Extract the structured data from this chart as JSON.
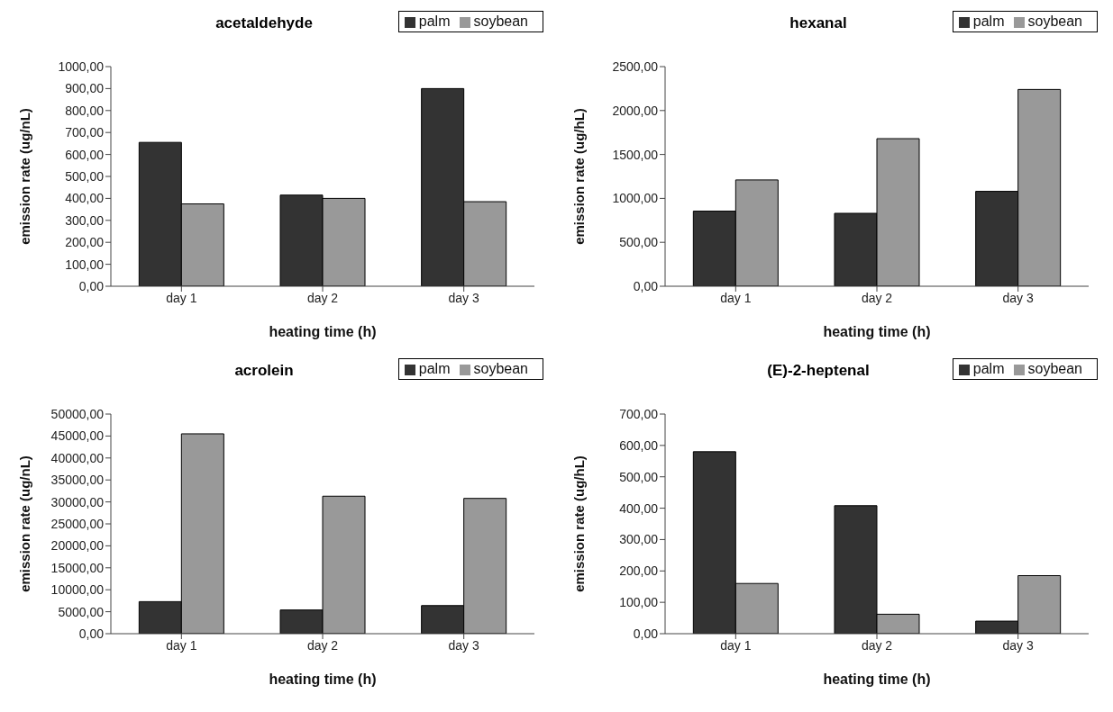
{
  "chart_data": [
    {
      "type": "bar",
      "title": "acetaldehyde",
      "xlabel": "heating time (h)",
      "ylabel": "emission rate (ug/nL)",
      "categories": [
        "day 1",
        "day 2",
        "day 3"
      ],
      "series": [
        {
          "name": "palm",
          "color": "#333333",
          "values": [
            655,
            415,
            900
          ]
        },
        {
          "name": "soybean",
          "color": "#999999",
          "values": [
            375,
            400,
            385
          ]
        }
      ],
      "ylim": [
        0,
        1000
      ],
      "yticks": [
        {
          "value": 0,
          "label": "0,00"
        },
        {
          "value": 100,
          "label": "100,00"
        },
        {
          "value": 200,
          "label": "200,00"
        },
        {
          "value": 300,
          "label": "300,00"
        },
        {
          "value": 400,
          "label": "400,00"
        },
        {
          "value": 500,
          "label": "500,00"
        },
        {
          "value": 600,
          "label": "600,00"
        },
        {
          "value": 700,
          "label": "700,00"
        },
        {
          "value": 800,
          "label": "800,00"
        },
        {
          "value": 900,
          "label": "900,00"
        },
        {
          "value": 1000,
          "label": "1000,00"
        }
      ],
      "grid": false,
      "legend": "top right"
    },
    {
      "type": "bar",
      "title": "hexanal",
      "xlabel": "heating time (h)",
      "ylabel": "emission rate (ug/hL)",
      "categories": [
        "day 1",
        "day 2",
        "day 3"
      ],
      "series": [
        {
          "name": "palm",
          "color": "#333333",
          "values": [
            855,
            830,
            1080
          ]
        },
        {
          "name": "soybean",
          "color": "#999999",
          "values": [
            1210,
            1680,
            2240
          ]
        }
      ],
      "ylim": [
        0,
        2500
      ],
      "yticks": [
        {
          "value": 0,
          "label": "0,00"
        },
        {
          "value": 500,
          "label": "500,00"
        },
        {
          "value": 1000,
          "label": "1000,00"
        },
        {
          "value": 1500,
          "label": "1500,00"
        },
        {
          "value": 2000,
          "label": "2000,00"
        },
        {
          "value": 2500,
          "label": "2500,00"
        }
      ],
      "grid": false,
      "legend": "top right"
    },
    {
      "type": "bar",
      "title": "acrolein",
      "xlabel": "heating time (h)",
      "ylabel": "emission rate (ug/nL)",
      "categories": [
        "day 1",
        "day 2",
        "day 3"
      ],
      "series": [
        {
          "name": "palm",
          "color": "#333333",
          "values": [
            7300,
            5400,
            6400
          ]
        },
        {
          "name": "soybean",
          "color": "#999999",
          "values": [
            45500,
            31300,
            30800
          ]
        }
      ],
      "ylim": [
        0,
        50000
      ],
      "yticks": [
        {
          "value": 0,
          "label": "0,00"
        },
        {
          "value": 5000,
          "label": "5000,00"
        },
        {
          "value": 10000,
          "label": "10000,00"
        },
        {
          "value": 15000,
          "label": "15000,00"
        },
        {
          "value": 20000,
          "label": "20000,00"
        },
        {
          "value": 25000,
          "label": "25000,00"
        },
        {
          "value": 30000,
          "label": "30000,00"
        },
        {
          "value": 35000,
          "label": "35000,00"
        },
        {
          "value": 40000,
          "label": "40000,00"
        },
        {
          "value": 45000,
          "label": "45000,00"
        },
        {
          "value": 50000,
          "label": "50000,00"
        }
      ],
      "grid": false,
      "legend": "top right"
    },
    {
      "type": "bar",
      "title": "(E)-2-heptenal",
      "xlabel": "heating time (h)",
      "ylabel": "emission rate (ug/hL)",
      "categories": [
        "day 1",
        "day 2",
        "day 3"
      ],
      "series": [
        {
          "name": "palm",
          "color": "#333333",
          "values": [
            580,
            408,
            40
          ]
        },
        {
          "name": "soybean",
          "color": "#999999",
          "values": [
            160,
            62,
            185
          ]
        }
      ],
      "ylim": [
        0,
        700
      ],
      "yticks": [
        {
          "value": 0,
          "label": "0,00"
        },
        {
          "value": 100,
          "label": "100,00"
        },
        {
          "value": 200,
          "label": "200,00"
        },
        {
          "value": 300,
          "label": "300,00"
        },
        {
          "value": 400,
          "label": "400,00"
        },
        {
          "value": 500,
          "label": "500,00"
        },
        {
          "value": 600,
          "label": "600,00"
        },
        {
          "value": 700,
          "label": "700,00"
        }
      ],
      "grid": false,
      "legend": "top right"
    }
  ]
}
